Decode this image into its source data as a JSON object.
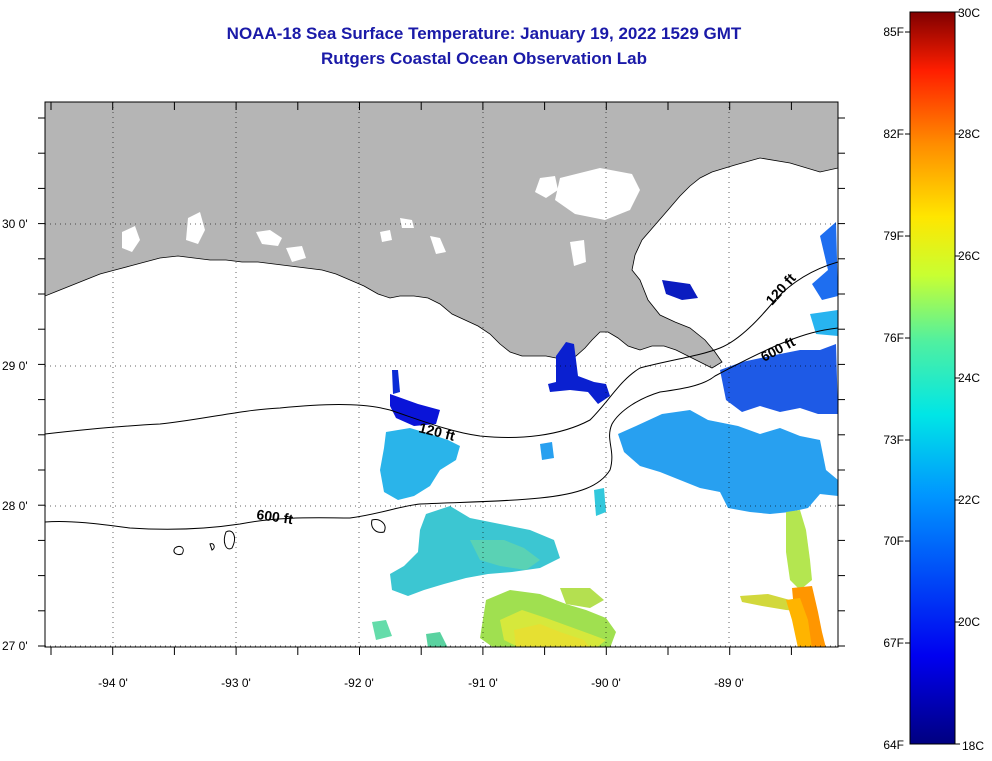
{
  "header": {
    "title": "NOAA-18 Sea Surface Temperature:  January 19, 2022 1529 GMT",
    "subtitle": "Rutgers Coastal Ocean Observation Lab"
  },
  "map": {
    "lon_range": [
      -94.55,
      -88.2
    ],
    "lat_range": [
      26.95,
      30.8
    ],
    "lon_ticks": [
      "-94 0'",
      "-93 0'",
      "-92 0'",
      "-91 0'",
      "-90 0'",
      "-89 0'"
    ],
    "lat_ticks": [
      "30 0'",
      "29 0'",
      "28 0'",
      "27 0'"
    ],
    "contours": [
      {
        "label": "120 ft"
      },
      {
        "label": "600 ft"
      },
      {
        "label": "120 ft"
      },
      {
        "label": "600 ft"
      }
    ],
    "colors": {
      "land": "#b5b5b5",
      "ocean_nodata": "#ffffff"
    }
  },
  "colorbar": {
    "fahrenheit": [
      "85F",
      "82F",
      "79F",
      "76F",
      "73F",
      "70F",
      "67F",
      "64F"
    ],
    "celsius": [
      "30C",
      "28C",
      "26C",
      "24C",
      "22C",
      "20C",
      "18C"
    ],
    "range_c": [
      18,
      30
    ]
  }
}
